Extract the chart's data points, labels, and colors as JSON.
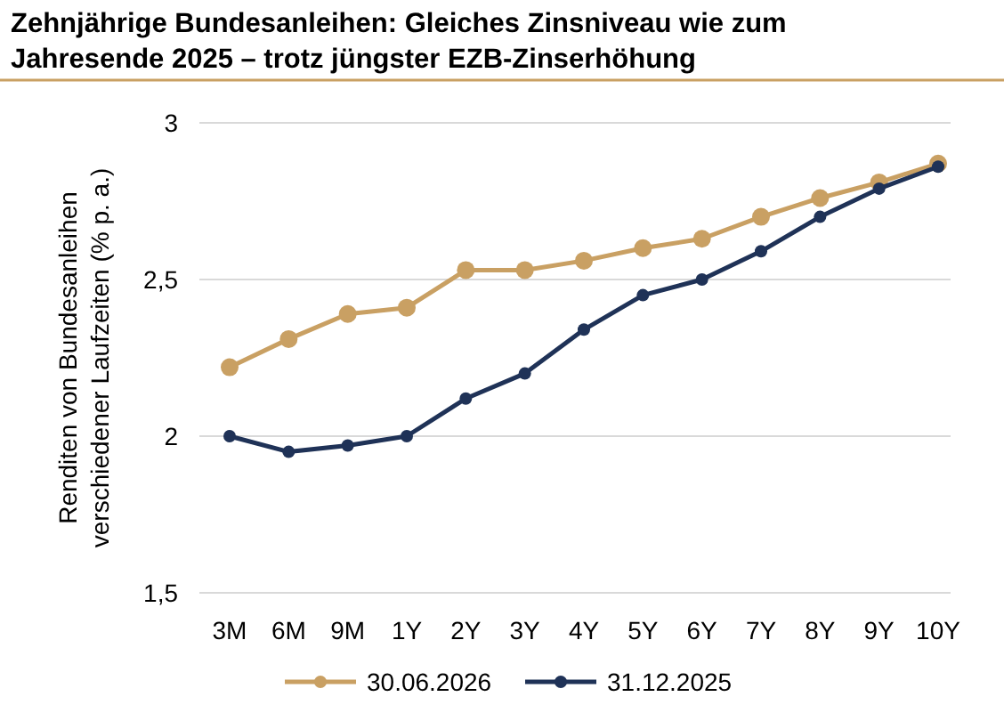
{
  "chart_data": {
    "type": "line",
    "title": "Zehnjährige Bundesanleihen: Gleiches Zinsniveau wie zum Jahresende 2025 – trotz jüngster EZB-Zinserhöhung",
    "ylabel": "Renditen von Bundesanleihen verschiedener Laufzeiten (% p. a.)",
    "categories": [
      "3M",
      "6M",
      "9M",
      "1Y",
      "2Y",
      "3Y",
      "4Y",
      "5Y",
      "6Y",
      "7Y",
      "8Y",
      "9Y",
      "10Y"
    ],
    "series": [
      {
        "name": "30.06.2026",
        "color": "#c9a063",
        "values": [
          2.22,
          2.31,
          2.39,
          2.41,
          2.53,
          2.53,
          2.56,
          2.6,
          2.63,
          2.7,
          2.76,
          2.81,
          2.87
        ]
      },
      {
        "name": "31.12.2025",
        "color": "#1f3257",
        "values": [
          2.0,
          1.95,
          1.97,
          2.0,
          2.12,
          2.2,
          2.34,
          2.45,
          2.5,
          2.59,
          2.7,
          2.79,
          2.86
        ]
      }
    ],
    "ylim": [
      1.5,
      3
    ],
    "yticks": [
      {
        "value": 1.5,
        "label": "1,5"
      },
      2,
      {
        "value": 2.5,
        "label": "2,5"
      },
      3
    ],
    "grid": "y",
    "legend": "bottom",
    "marker": "circle",
    "line_style": "solid"
  }
}
